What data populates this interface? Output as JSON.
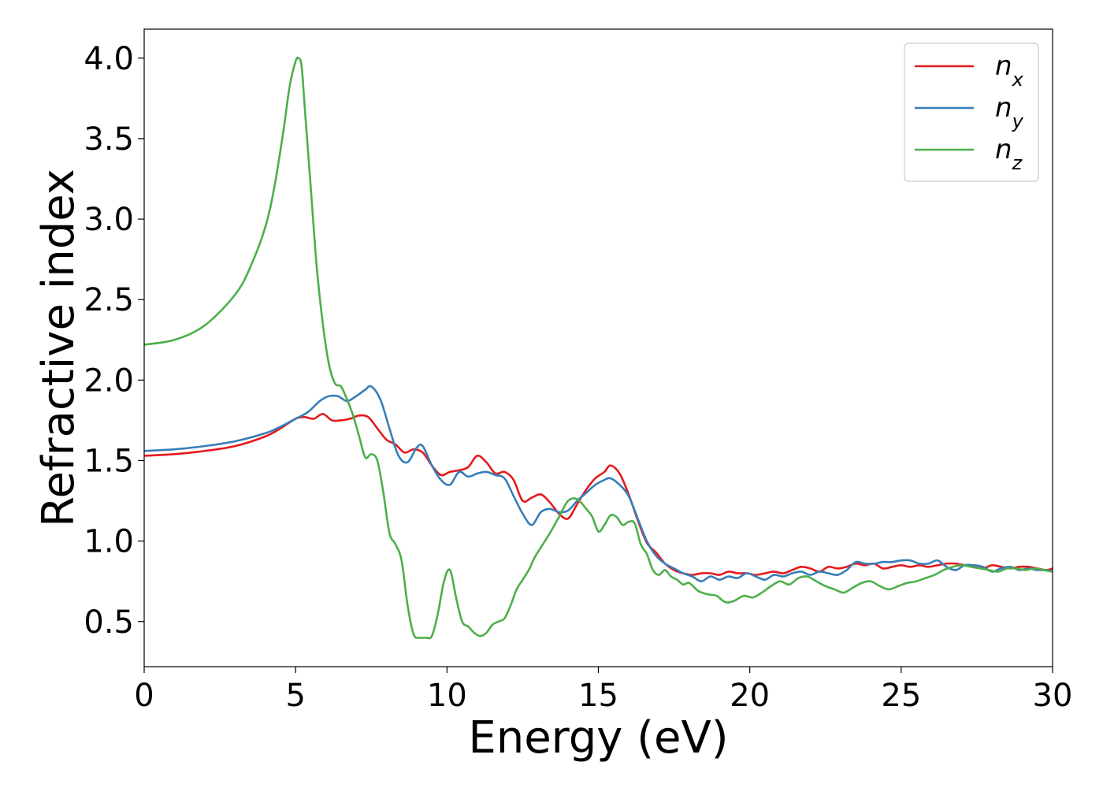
{
  "chart_data": {
    "type": "line",
    "title": "",
    "xlabel": "Energy (eV)",
    "ylabel": "Refractive index",
    "xlim": [
      0,
      30
    ],
    "ylim": [
      0.22,
      4.18
    ],
    "xticks": [
      0,
      5,
      10,
      15,
      20,
      25,
      30
    ],
    "xtick_labels": [
      "0",
      "5",
      "10",
      "15",
      "20",
      "25",
      "30"
    ],
    "yticks": [
      0.5,
      1.0,
      1.5,
      2.0,
      2.5,
      3.0,
      3.5,
      4.0
    ],
    "ytick_labels": [
      "0.5",
      "1.0",
      "1.5",
      "2.0",
      "2.5",
      "3.0",
      "3.5",
      "4.0"
    ],
    "grid": false,
    "legend_position": "top-right",
    "series": [
      {
        "name": "n_x",
        "label_base": "n",
        "label_sub": "x",
        "color": "#e41a1c",
        "x": [
          0,
          1,
          2,
          3,
          4,
          4.5,
          5,
          5.3,
          5.6,
          5.9,
          6.2,
          6.5,
          6.8,
          7.1,
          7.4,
          7.7,
          8.0,
          8.3,
          8.6,
          8.9,
          9.2,
          9.5,
          9.8,
          10.1,
          10.4,
          10.7,
          11.0,
          11.3,
          11.6,
          11.9,
          12.2,
          12.5,
          12.8,
          13.1,
          13.4,
          13.7,
          14.0,
          14.3,
          14.6,
          14.9,
          15.2,
          15.4,
          15.7,
          16.0,
          16.3,
          16.6,
          16.9,
          17.2,
          17.5,
          17.8,
          18.1,
          18.4,
          18.7,
          19.0,
          19.3,
          19.6,
          19.9,
          20.2,
          20.5,
          20.8,
          21.1,
          21.4,
          21.7,
          22.0,
          22.3,
          22.6,
          22.9,
          23.2,
          23.5,
          23.8,
          24.1,
          24.4,
          24.7,
          25.0,
          25.3,
          25.6,
          25.9,
          26.2,
          26.5,
          26.8,
          27.1,
          27.4,
          27.7,
          28.0,
          28.3,
          28.6,
          28.9,
          29.2,
          29.5,
          29.8,
          30.0
        ],
        "y": [
          1.53,
          1.54,
          1.56,
          1.59,
          1.65,
          1.7,
          1.76,
          1.77,
          1.76,
          1.79,
          1.75,
          1.75,
          1.76,
          1.78,
          1.77,
          1.7,
          1.63,
          1.6,
          1.55,
          1.57,
          1.55,
          1.47,
          1.41,
          1.43,
          1.44,
          1.46,
          1.53,
          1.49,
          1.42,
          1.43,
          1.38,
          1.25,
          1.27,
          1.29,
          1.24,
          1.17,
          1.14,
          1.23,
          1.32,
          1.39,
          1.43,
          1.47,
          1.42,
          1.29,
          1.13,
          0.99,
          0.93,
          0.86,
          0.82,
          0.8,
          0.79,
          0.8,
          0.8,
          0.79,
          0.81,
          0.8,
          0.8,
          0.79,
          0.8,
          0.81,
          0.8,
          0.82,
          0.84,
          0.83,
          0.81,
          0.84,
          0.83,
          0.84,
          0.86,
          0.85,
          0.86,
          0.83,
          0.84,
          0.85,
          0.84,
          0.85,
          0.84,
          0.85,
          0.86,
          0.86,
          0.85,
          0.84,
          0.83,
          0.85,
          0.84,
          0.83,
          0.84,
          0.84,
          0.83,
          0.82,
          0.83
        ]
      },
      {
        "name": "n_y",
        "label_base": "n",
        "label_sub": "y",
        "color": "#377eb8",
        "x": [
          0,
          1,
          2,
          3,
          4,
          4.5,
          5,
          5.4,
          5.8,
          6.1,
          6.4,
          6.7,
          7.0,
          7.3,
          7.5,
          7.8,
          8.1,
          8.4,
          8.7,
          9.0,
          9.2,
          9.5,
          9.8,
          10.1,
          10.4,
          10.7,
          11.0,
          11.3,
          11.6,
          11.9,
          12.2,
          12.5,
          12.8,
          13.1,
          13.4,
          13.7,
          14.0,
          14.3,
          14.6,
          14.9,
          15.2,
          15.4,
          15.7,
          16.0,
          16.3,
          16.6,
          16.9,
          17.2,
          17.5,
          17.8,
          18.1,
          18.4,
          18.7,
          19.0,
          19.3,
          19.6,
          19.9,
          20.2,
          20.5,
          20.8,
          21.1,
          21.4,
          21.7,
          22.0,
          22.3,
          22.6,
          22.9,
          23.2,
          23.5,
          23.8,
          24.1,
          24.4,
          24.7,
          25.0,
          25.3,
          25.6,
          25.9,
          26.2,
          26.5,
          26.8,
          27.1,
          27.4,
          27.7,
          28.0,
          28.3,
          28.6,
          28.9,
          29.2,
          29.5,
          29.8,
          30.0
        ],
        "y": [
          1.56,
          1.57,
          1.59,
          1.62,
          1.67,
          1.71,
          1.76,
          1.8,
          1.87,
          1.9,
          1.9,
          1.87,
          1.9,
          1.94,
          1.96,
          1.88,
          1.7,
          1.53,
          1.49,
          1.58,
          1.59,
          1.47,
          1.38,
          1.35,
          1.43,
          1.4,
          1.42,
          1.43,
          1.41,
          1.39,
          1.28,
          1.17,
          1.1,
          1.18,
          1.2,
          1.18,
          1.19,
          1.25,
          1.3,
          1.35,
          1.38,
          1.39,
          1.35,
          1.28,
          1.14,
          1.0,
          0.91,
          0.86,
          0.83,
          0.8,
          0.78,
          0.75,
          0.78,
          0.76,
          0.78,
          0.77,
          0.8,
          0.78,
          0.76,
          0.79,
          0.78,
          0.8,
          0.81,
          0.79,
          0.81,
          0.8,
          0.79,
          0.82,
          0.87,
          0.86,
          0.86,
          0.87,
          0.87,
          0.88,
          0.88,
          0.86,
          0.86,
          0.88,
          0.84,
          0.82,
          0.85,
          0.85,
          0.84,
          0.81,
          0.83,
          0.84,
          0.82,
          0.83,
          0.82,
          0.82,
          0.81
        ]
      },
      {
        "name": "n_z",
        "label_base": "n",
        "label_sub": "z",
        "color": "#4daf4a",
        "x": [
          0,
          1,
          2,
          3,
          3.5,
          4,
          4.3,
          4.6,
          4.8,
          5.0,
          5.1,
          5.2,
          5.3,
          5.5,
          5.7,
          5.9,
          6.1,
          6.3,
          6.5,
          6.7,
          6.9,
          7.1,
          7.3,
          7.5,
          7.7,
          7.9,
          8.1,
          8.3,
          8.5,
          8.7,
          8.9,
          9.1,
          9.3,
          9.5,
          9.7,
          9.9,
          10.1,
          10.3,
          10.5,
          10.7,
          10.9,
          11.1,
          11.3,
          11.5,
          11.7,
          11.9,
          12.1,
          12.3,
          12.5,
          12.7,
          12.9,
          13.1,
          13.4,
          13.7,
          14.0,
          14.3,
          14.6,
          14.8,
          15.0,
          15.2,
          15.4,
          15.6,
          15.8,
          16.0,
          16.2,
          16.4,
          16.6,
          16.8,
          17.0,
          17.2,
          17.4,
          17.6,
          17.8,
          18.0,
          18.3,
          18.6,
          18.9,
          19.2,
          19.5,
          19.8,
          20.1,
          20.4,
          20.7,
          21.0,
          21.3,
          21.6,
          21.9,
          22.2,
          22.5,
          22.8,
          23.1,
          23.4,
          23.7,
          24.0,
          24.3,
          24.6,
          24.9,
          25.2,
          25.5,
          25.8,
          26.1,
          26.4,
          26.7,
          27.0,
          27.3,
          27.6,
          27.9,
          28.2,
          28.5,
          28.8,
          29.1,
          29.4,
          29.7,
          30.0
        ],
        "y": [
          2.22,
          2.25,
          2.34,
          2.53,
          2.7,
          2.95,
          3.2,
          3.55,
          3.82,
          3.98,
          4.0,
          3.95,
          3.7,
          3.2,
          2.7,
          2.35,
          2.1,
          1.98,
          1.96,
          1.88,
          1.78,
          1.65,
          1.52,
          1.54,
          1.5,
          1.3,
          1.05,
          0.98,
          0.88,
          0.6,
          0.42,
          0.4,
          0.4,
          0.41,
          0.55,
          0.75,
          0.82,
          0.65,
          0.5,
          0.47,
          0.43,
          0.41,
          0.43,
          0.48,
          0.5,
          0.52,
          0.6,
          0.7,
          0.76,
          0.82,
          0.9,
          0.96,
          1.05,
          1.15,
          1.25,
          1.26,
          1.2,
          1.15,
          1.06,
          1.1,
          1.16,
          1.15,
          1.1,
          1.12,
          1.11,
          0.98,
          0.92,
          0.82,
          0.79,
          0.82,
          0.78,
          0.76,
          0.73,
          0.74,
          0.69,
          0.67,
          0.66,
          0.62,
          0.63,
          0.66,
          0.65,
          0.68,
          0.72,
          0.75,
          0.73,
          0.77,
          0.78,
          0.75,
          0.72,
          0.7,
          0.68,
          0.71,
          0.74,
          0.75,
          0.72,
          0.7,
          0.72,
          0.74,
          0.75,
          0.77,
          0.79,
          0.82,
          0.84,
          0.85,
          0.84,
          0.83,
          0.82,
          0.81,
          0.83,
          0.83,
          0.82,
          0.83,
          0.82,
          0.81
        ]
      }
    ]
  }
}
